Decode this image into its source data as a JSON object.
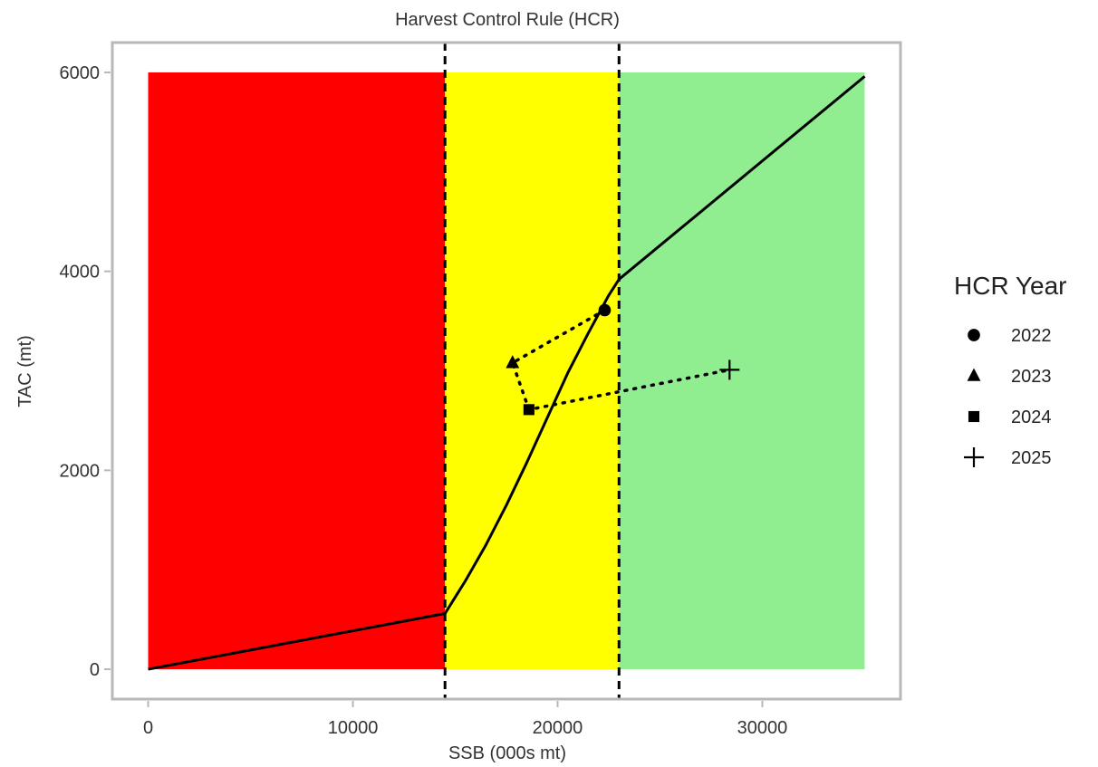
{
  "chart_data": {
    "type": "line",
    "title": "Harvest Control Rule (HCR)",
    "xlabel": "SSB (000s mt)",
    "ylabel": "TAC (mt)",
    "xlim": [
      -1750,
      36750
    ],
    "ylim": [
      -300,
      6300
    ],
    "x_ticks": [
      0,
      10000,
      20000,
      30000
    ],
    "y_ticks": [
      0,
      2000,
      4000,
      6000
    ],
    "x_tick_labels": [
      "0",
      "10000",
      "20000",
      "30000"
    ],
    "y_tick_labels": [
      "0",
      "2000",
      "4000",
      "6000"
    ],
    "grid": false,
    "zones": [
      {
        "name": "red",
        "x_start": 0,
        "x_end": 14500,
        "y_start": 0,
        "y_end": 6000,
        "color": "#ff0000"
      },
      {
        "name": "yellow",
        "x_start": 14500,
        "x_end": 23000,
        "y_start": 0,
        "y_end": 6000,
        "color": "#ffff00"
      },
      {
        "name": "green",
        "x_start": 23000,
        "x_end": 35000,
        "y_start": 0,
        "y_end": 6000,
        "color": "#90ee90"
      }
    ],
    "thresholds": [
      14500,
      23000
    ],
    "hcr_curve": {
      "x": [
        0,
        14500,
        15500,
        16500,
        17500,
        18500,
        19500,
        20500,
        21500,
        22500,
        23000,
        35000
      ],
      "y": [
        0,
        560,
        890,
        1250,
        1650,
        2080,
        2530,
        2980,
        3380,
        3760,
        3920,
        5960
      ]
    },
    "trajectory": {
      "x": [
        22300,
        17800,
        18600,
        28400
      ],
      "y": [
        3610,
        3080,
        2610,
        3010
      ]
    },
    "series": [
      {
        "name": "2022",
        "x": 22300,
        "y": 3610,
        "marker": "circle"
      },
      {
        "name": "2023",
        "x": 17800,
        "y": 3080,
        "marker": "triangle"
      },
      {
        "name": "2024",
        "x": 18600,
        "y": 2610,
        "marker": "square"
      },
      {
        "name": "2025",
        "x": 28400,
        "y": 3010,
        "marker": "plus"
      }
    ],
    "legend": {
      "title": "HCR Year",
      "position": "right"
    }
  }
}
